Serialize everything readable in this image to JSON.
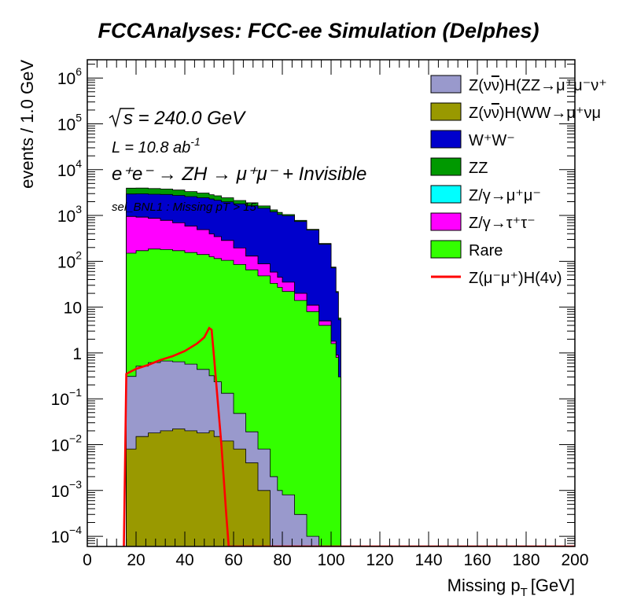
{
  "chart_data": {
    "type": "area",
    "title": "FCCAnalyses: FCC-ee Simulation (Delphes)",
    "xlabel": "Missing p",
    "xlabel_sub": "T",
    "xlabel_unit": "[GeV]",
    "ylabel": "events / 1.0 GeV",
    "xlim": [
      0,
      200
    ],
    "ylim": [
      6e-05,
      2500000
    ],
    "yscale": "log",
    "stacked": true,
    "x_ticks": [
      "0",
      "20",
      "40",
      "60",
      "80",
      "100",
      "120",
      "140",
      "160",
      "180",
      "200"
    ],
    "y_ticks": [
      {
        "base": "10",
        "exp": "−4",
        "value": 0.0001
      },
      {
        "base": "10",
        "exp": "−3",
        "value": 0.001
      },
      {
        "base": "10",
        "exp": "−2",
        "value": 0.01
      },
      {
        "base": "10",
        "exp": "−1",
        "value": 0.1
      },
      {
        "base": "1",
        "exp": "",
        "value": 1
      },
      {
        "base": "10",
        "exp": "",
        "value": 10
      },
      {
        "base": "10",
        "exp": "2",
        "value": 100
      },
      {
        "base": "10",
        "exp": "3",
        "value": 1000
      },
      {
        "base": "10",
        "exp": "4",
        "value": 10000
      },
      {
        "base": "10",
        "exp": "5",
        "value": 100000
      },
      {
        "base": "10",
        "exp": "6",
        "value": 1000000
      }
    ],
    "annotations": {
      "sqrt_s": "s = 240.0 GeV",
      "lumi": "L = 10.8 ab",
      "lumi_exp": "-1",
      "process": "e⁺e⁻ → ZH → μ⁺μ⁻ + Invisible",
      "selection": "sel_BNL1 : Missing pT > 15"
    },
    "x_grid": [
      16,
      20,
      25,
      30,
      35,
      40,
      45,
      50,
      52,
      55,
      60,
      65,
      70,
      75,
      78,
      80,
      85,
      90,
      95,
      100,
      102,
      103,
      104
    ],
    "series": [
      {
        "name": "Z(νν̄)H(WW→μ⁺νμ⁻ν̄)",
        "color": "#999900",
        "values": [
          0.008,
          0.015,
          0.018,
          0.02,
          0.022,
          0.02,
          0.018,
          0.02,
          0.015,
          0.012,
          0.008,
          0.004,
          0.001,
          0,
          0,
          0,
          0,
          0,
          0,
          0,
          0,
          0,
          0
        ]
      },
      {
        "name": "Z(νν̄)H(ZZ→μ⁺μ⁻νν̄)",
        "color": "#9999cc",
        "values": [
          0.3,
          0.5,
          0.6,
          0.65,
          0.62,
          0.55,
          0.42,
          0.3,
          0.22,
          0.12,
          0.04,
          0.015,
          0.007,
          0.002,
          0.001,
          0.0008,
          0.0003,
          0.0001,
          0,
          0,
          0,
          0,
          0
        ]
      },
      {
        "name": "Rare",
        "color": "#33ff00",
        "values": [
          150,
          170,
          185,
          180,
          170,
          155,
          140,
          125,
          115,
          105,
          85,
          65,
          48,
          33,
          27,
          22,
          14,
          8,
          4,
          1.6,
          0.8,
          0.3,
          0
        ]
      },
      {
        "name": "Z/γ→τ⁺τ⁻",
        "color": "#ff00ff",
        "values": [
          800,
          750,
          680,
          600,
          520,
          430,
          350,
          270,
          230,
          180,
          110,
          65,
          40,
          25,
          18,
          13,
          6,
          3,
          1,
          0.2,
          0.1,
          0,
          0
        ]
      },
      {
        "name": "Z/γ→μ⁺μ⁻",
        "color": "#00ffff",
        "values": [
          0,
          0,
          0,
          0,
          0,
          0,
          0,
          0,
          0,
          0,
          0,
          0,
          0,
          0,
          0,
          0,
          0,
          0,
          0,
          0,
          0,
          0,
          0
        ]
      },
      {
        "name": "W⁺W⁻",
        "color": "#0000cc",
        "values": [
          2000,
          2050,
          2050,
          2100,
          2050,
          2000,
          1950,
          1900,
          1800,
          1700,
          1600,
          1500,
          1350,
          1150,
          1000,
          950,
          720,
          470,
          230,
          70,
          20,
          5,
          0
        ]
      },
      {
        "name": "ZZ",
        "color": "#009900",
        "values": [
          1000,
          1000,
          950,
          900,
          850,
          750,
          650,
          550,
          550,
          450,
          330,
          260,
          180,
          120,
          120,
          60,
          40,
          20,
          10,
          3,
          1,
          0.5,
          0
        ]
      }
    ],
    "signal": {
      "name": "Z(μ⁻μ⁺)H(4ν)",
      "color": "#ff0000",
      "x": [
        15,
        16,
        20,
        25,
        30,
        35,
        40,
        45,
        48,
        50,
        51,
        52,
        55,
        57,
        58,
        200
      ],
      "y": [
        6e-05,
        0.35,
        0.45,
        0.55,
        0.7,
        0.85,
        1.1,
        1.6,
        2.2,
        3.5,
        3.2,
        0.8,
        0.01,
        0.0003,
        6e-05,
        6e-05
      ]
    },
    "legend_order": [
      "Z(νν̄)H(ZZ→μ⁺μ⁻νν̄)",
      "Z(νν̄)H(WW→μ⁺νμ⁻ν̄)",
      "W⁺W⁻",
      "ZZ",
      "Z/γ→μ⁺μ⁻",
      "Z/γ→τ⁺τ⁻",
      "Rare",
      "Z(μ⁻μ⁺)H(4ν)"
    ],
    "legend_labels": [
      {
        "a": "Z(ν",
        "b": "ν",
        "c": ")H(ZZ→μ⁺μ⁻ν⁺"
      },
      {
        "a": "Z(ν",
        "b": "ν",
        "c": ")H(WW→μ⁺νμ"
      },
      {
        "a": "W⁺W⁻",
        "b": "",
        "c": ""
      },
      {
        "a": "ZZ",
        "b": "",
        "c": ""
      },
      {
        "a": "Z/γ→μ⁺μ⁻",
        "b": "",
        "c": ""
      },
      {
        "a": "Z/γ→τ⁺τ⁻",
        "b": "",
        "c": ""
      },
      {
        "a": "Rare",
        "b": "",
        "c": ""
      },
      {
        "a": "Z(μ⁻μ⁺)H(4ν)",
        "b": "",
        "c": ""
      }
    ],
    "legend_position": "top-right"
  }
}
